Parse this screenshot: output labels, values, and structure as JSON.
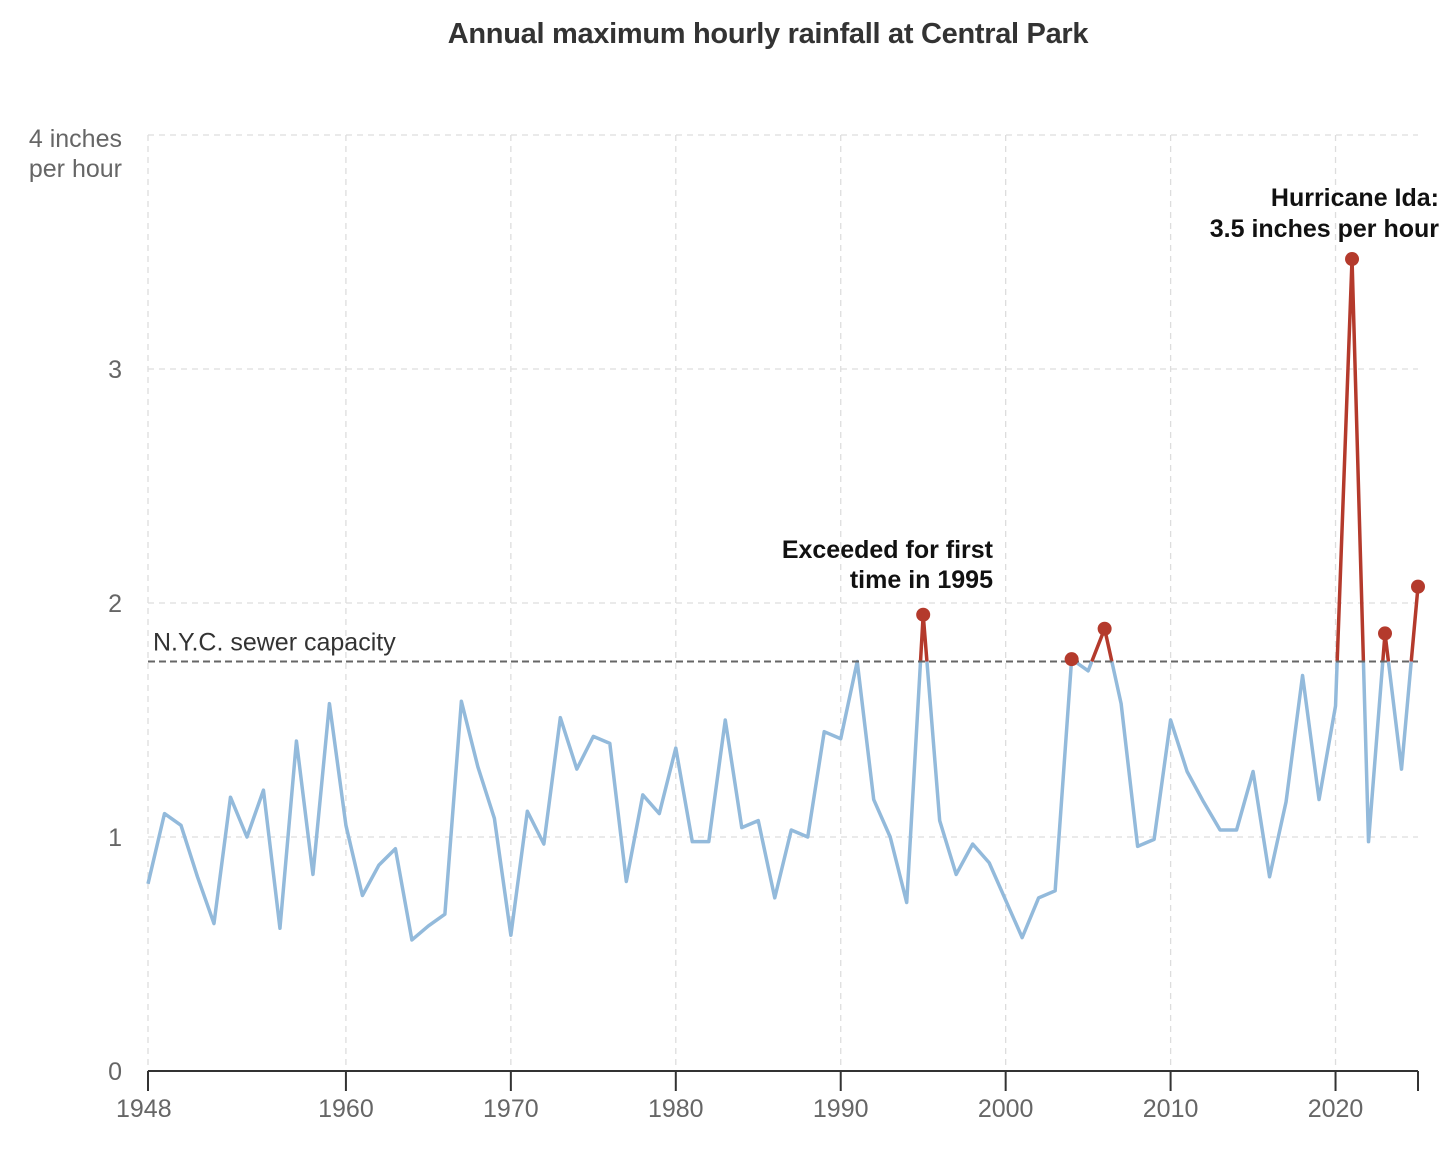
{
  "chart_data": {
    "type": "line",
    "title": "Annual maximum hourly rainfall at Central Park",
    "ylabel_top": [
      "4 inches",
      "per hour"
    ],
    "y_ticks": [
      0,
      1,
      2,
      3
    ],
    "ylim": [
      0,
      4
    ],
    "x_ticks": [
      "1948",
      "1960",
      "1970",
      "1980",
      "1990",
      "2000",
      "2010",
      "2020"
    ],
    "xlim": [
      1948,
      2025
    ],
    "grid": true,
    "threshold": {
      "label": "N.Y.C. sewer capacity",
      "value": 1.75
    },
    "annotations": [
      {
        "lines": [
          "Exceeded for first",
          "time in 1995"
        ],
        "x": 1995
      },
      {
        "lines": [
          "Hurricane Ida:",
          "3.5 inches per hour"
        ],
        "x": 2021
      }
    ],
    "colors": {
      "below": "#93badb",
      "above": "#b43a2c",
      "grid": "#dddddd",
      "axis": "#333333"
    },
    "x": [
      1948,
      1949,
      1950,
      1951,
      1952,
      1953,
      1954,
      1955,
      1956,
      1957,
      1958,
      1959,
      1960,
      1961,
      1962,
      1963,
      1964,
      1965,
      1966,
      1967,
      1968,
      1969,
      1970,
      1971,
      1972,
      1973,
      1974,
      1975,
      1976,
      1977,
      1978,
      1979,
      1980,
      1981,
      1982,
      1983,
      1984,
      1985,
      1986,
      1987,
      1988,
      1989,
      1990,
      1991,
      1992,
      1993,
      1994,
      1995,
      1996,
      1997,
      1998,
      1999,
      2000,
      2001,
      2002,
      2003,
      2004,
      2005,
      2006,
      2007,
      2008,
      2009,
      2010,
      2011,
      2012,
      2013,
      2014,
      2015,
      2016,
      2017,
      2018,
      2019,
      2020,
      2021,
      2022,
      2023,
      2024,
      2025
    ],
    "values": [
      0.8,
      1.1,
      1.05,
      0.83,
      0.63,
      1.17,
      1.0,
      1.2,
      0.61,
      1.41,
      0.84,
      1.57,
      1.05,
      0.75,
      0.88,
      0.95,
      0.56,
      0.62,
      0.67,
      1.58,
      1.3,
      1.08,
      0.58,
      1.11,
      0.97,
      1.51,
      1.29,
      1.43,
      1.4,
      0.81,
      1.18,
      1.1,
      1.38,
      0.98,
      0.98,
      1.5,
      1.04,
      1.07,
      0.74,
      1.03,
      1.0,
      1.45,
      1.42,
      1.75,
      1.16,
      1.0,
      0.72,
      1.95,
      1.07,
      0.84,
      0.97,
      0.89,
      0.73,
      0.57,
      0.74,
      0.77,
      1.76,
      1.71,
      1.89,
      1.57,
      0.96,
      0.99,
      1.5,
      1.28,
      1.15,
      1.03,
      1.03,
      1.28,
      0.83,
      1.15,
      1.69,
      1.16,
      1.56,
      3.47,
      0.98,
      1.87,
      1.29,
      2.07
    ],
    "highlighted_points": [
      1995,
      2004,
      2006,
      2021,
      2023,
      2025
    ]
  }
}
